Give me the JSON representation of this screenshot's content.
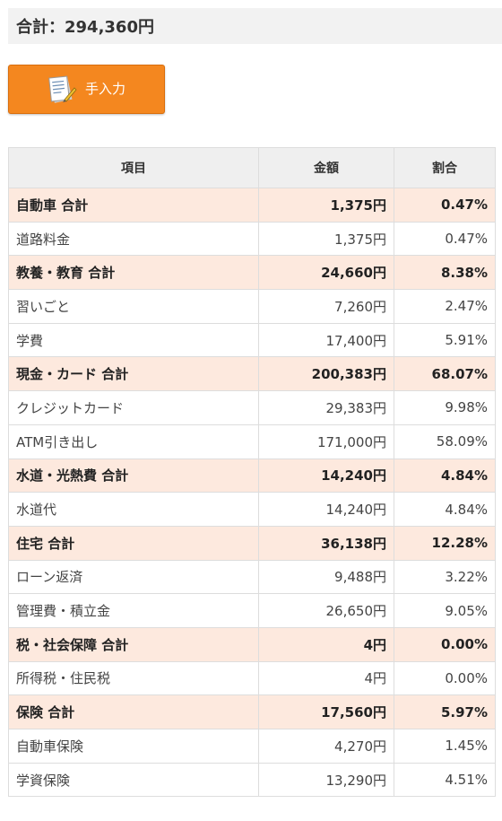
{
  "summary": {
    "total_label": "合計：294,360円"
  },
  "toolbar": {
    "manual_input_label": "手入力",
    "manual_input_icon": "notepad-pencil-icon"
  },
  "table": {
    "headers": {
      "item": "項目",
      "amount": "金額",
      "ratio": "割合"
    },
    "rows": [
      {
        "type": "subtotal",
        "item": "自動車 合計",
        "amount": "1,375円",
        "ratio": "0.47%"
      },
      {
        "type": "item",
        "item": "道路料金",
        "amount": "1,375円",
        "ratio": "0.47%"
      },
      {
        "type": "subtotal",
        "item": "教養・教育 合計",
        "amount": "24,660円",
        "ratio": "8.38%"
      },
      {
        "type": "item",
        "item": "習いごと",
        "amount": "7,260円",
        "ratio": "2.47%"
      },
      {
        "type": "item",
        "item": "学費",
        "amount": "17,400円",
        "ratio": "5.91%"
      },
      {
        "type": "subtotal",
        "item": "現金・カード 合計",
        "amount": "200,383円",
        "ratio": "68.07%"
      },
      {
        "type": "item",
        "item": "クレジットカード",
        "amount": "29,383円",
        "ratio": "9.98%"
      },
      {
        "type": "item",
        "item": "ATM引き出し",
        "amount": "171,000円",
        "ratio": "58.09%"
      },
      {
        "type": "subtotal",
        "item": "水道・光熱費 合計",
        "amount": "14,240円",
        "ratio": "4.84%"
      },
      {
        "type": "item",
        "item": "水道代",
        "amount": "14,240円",
        "ratio": "4.84%"
      },
      {
        "type": "subtotal",
        "item": "住宅 合計",
        "amount": "36,138円",
        "ratio": "12.28%"
      },
      {
        "type": "item",
        "item": "ローン返済",
        "amount": "9,488円",
        "ratio": "3.22%"
      },
      {
        "type": "item",
        "item": "管理費・積立金",
        "amount": "26,650円",
        "ratio": "9.05%"
      },
      {
        "type": "subtotal",
        "item": "税・社会保障 合計",
        "amount": "4円",
        "ratio": "0.00%"
      },
      {
        "type": "item",
        "item": "所得税・住民税",
        "amount": "4円",
        "ratio": "0.00%"
      },
      {
        "type": "subtotal",
        "item": "保険 合計",
        "amount": "17,560円",
        "ratio": "5.97%"
      },
      {
        "type": "item",
        "item": "自動車保険",
        "amount": "4,270円",
        "ratio": "1.45%"
      },
      {
        "type": "item",
        "item": "学資保険",
        "amount": "13,290円",
        "ratio": "4.51%"
      }
    ]
  },
  "colors": {
    "button_orange": "#f4871f",
    "subtotal_row_bg": "#fde9de",
    "header_bg": "#efefef"
  }
}
